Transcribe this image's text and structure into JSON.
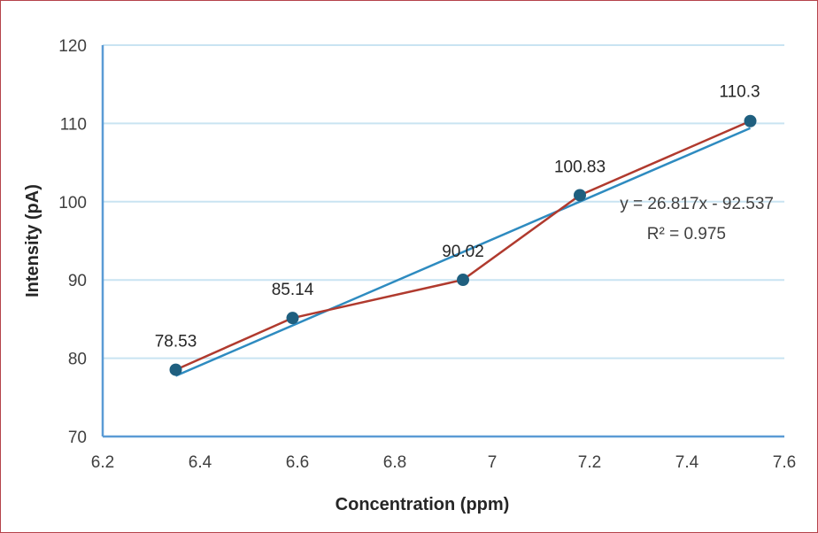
{
  "chart_data": {
    "type": "scatter",
    "xlabel": "Concentration (ppm)",
    "ylabel": "Intensity (pA)",
    "xlim": [
      6.2,
      7.6
    ],
    "ylim": [
      70,
      120
    ],
    "x_ticks": [
      "6.2",
      "6.4",
      "6.6",
      "6.8",
      "7",
      "7.2",
      "7.4",
      "7.6"
    ],
    "y_ticks": [
      "70",
      "80",
      "90",
      "100",
      "110",
      "120"
    ],
    "grid": "horizontal",
    "series": [
      {
        "x": [
          6.35,
          6.59,
          6.94,
          7.18,
          7.53
        ],
        "y": [
          78.53,
          85.14,
          90.02,
          100.83,
          110.3
        ],
        "data_labels": [
          "78.53",
          "85.14",
          "90.02",
          "100.83",
          "110.3"
        ],
        "line_color": "#b03a2e",
        "marker_color": "#1f5f7f"
      }
    ],
    "trendline": {
      "slope": 26.817,
      "intercept": -92.537,
      "x_range": [
        6.35,
        7.53
      ],
      "color": "#2e8bc0",
      "equation": "y = 26.817x - 92.537",
      "r_squared": "R² = 0.975"
    },
    "colors": {
      "grid": "#c9e4f2",
      "axis": "#5b9bd5",
      "border": "#b5434a"
    }
  }
}
